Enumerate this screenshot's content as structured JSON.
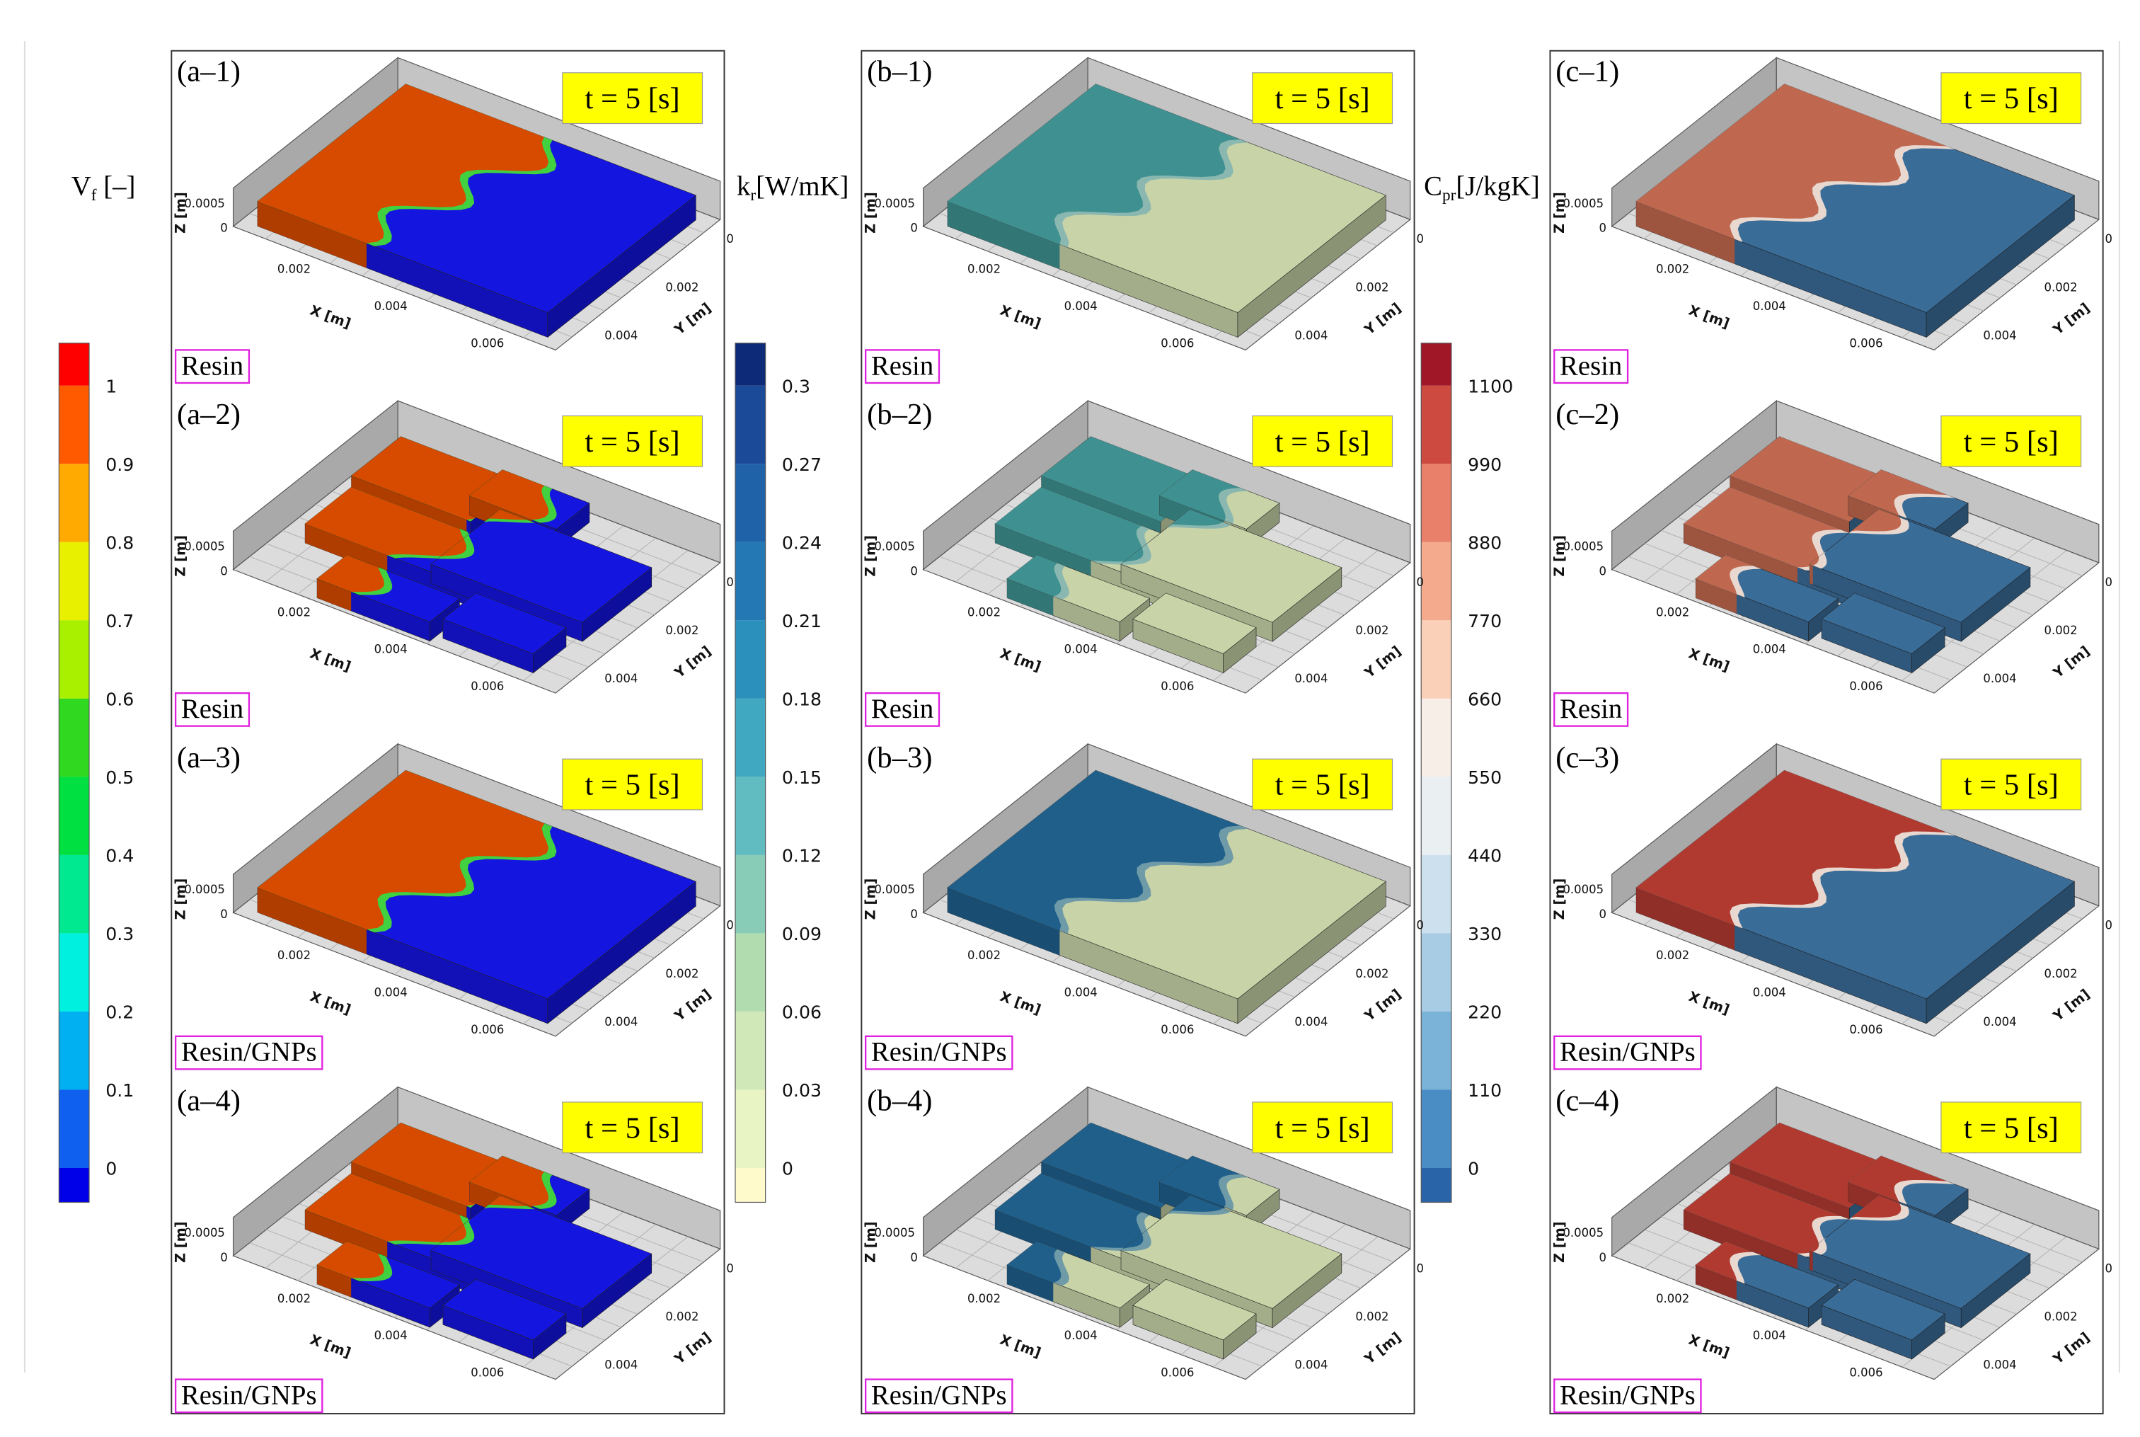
{
  "colorbars": [
    {
      "symbol": "V",
      "subscript": "f",
      "unit": " [–]",
      "ticks": [
        1,
        0.9,
        0.8,
        0.7,
        0.6,
        0.5,
        0.4,
        0.3,
        0.2,
        0.1,
        0
      ],
      "colors": [
        "#ff0000",
        "#ff5a00",
        "#ffaa00",
        "#e8f000",
        "#a8f000",
        "#30d820",
        "#00e040",
        "#00e890",
        "#00f0e0",
        "#00b0f0",
        "#1060f0",
        "#0000e8"
      ]
    },
    {
      "symbol": "k",
      "subscript": "r",
      "unit": "[W/mK]",
      "ticks": [
        0.3,
        0.27,
        0.24,
        0.21,
        0.18,
        0.15,
        0.12,
        0.09,
        0.06,
        0.03,
        0
      ],
      "colors": [
        "#0d2a78",
        "#1a4a98",
        "#1f62a8",
        "#2478b4",
        "#2c90bc",
        "#40a8c0",
        "#60bcc0",
        "#88ccb8",
        "#b0dcb0",
        "#d0e8b8",
        "#e8f4c4",
        "#fffacc"
      ]
    },
    {
      "symbol": "C",
      "subscript": "pr",
      "unit": "[J/kgK]",
      "ticks": [
        1100,
        990,
        880,
        770,
        660,
        550,
        440,
        330,
        220,
        110,
        0
      ],
      "colors": [
        "#a01828",
        "#cc4a40",
        "#e8806a",
        "#f4aa8c",
        "#fad0b8",
        "#f8eee8",
        "#eaeff2",
        "#cce0ee",
        "#a8cce4",
        "#7ab2d8",
        "#4a8cc4",
        "#2a64a8"
      ]
    }
  ],
  "axes": {
    "x_label": "X [m]",
    "y_label": "Y [m]",
    "z_label": "Z [m]",
    "x_ticks": [
      "0.002",
      "0.004",
      "0.006"
    ],
    "y_ticks": [
      "0",
      "0.002",
      "0.004"
    ],
    "z_ticks": [
      "0.0005",
      "0"
    ]
  },
  "columns": [
    {
      "panels": [
        {
          "label": "(a–1)",
          "time": "t = 5 [s]",
          "material": "Resin"
        },
        {
          "label": "(a–2)",
          "time": "t = 5 [s]",
          "material": "Resin"
        },
        {
          "label": "(a–3)",
          "time": "t = 5 [s]",
          "material": "Resin/GNPs"
        },
        {
          "label": "(a–4)",
          "time": "t = 5 [s]",
          "material": "Resin/GNPs"
        }
      ]
    },
    {
      "panels": [
        {
          "label": "(b–1)",
          "time": "t = 5 [s]",
          "material": "Resin"
        },
        {
          "label": "(b–2)",
          "time": "t = 5 [s]",
          "material": "Resin"
        },
        {
          "label": "(b–3)",
          "time": "t = 5 [s]",
          "material": "Resin/GNPs"
        },
        {
          "label": "(b–4)",
          "time": "t = 5 [s]",
          "material": "Resin/GNPs"
        }
      ]
    },
    {
      "panels": [
        {
          "label": "(c–1)",
          "time": "t = 5 [s]",
          "material": "Resin"
        },
        {
          "label": "(c–2)",
          "time": "t = 5 [s]",
          "material": "Resin"
        },
        {
          "label": "(c–3)",
          "time": "t = 5 [s]",
          "material": "Resin/GNPs"
        },
        {
          "label": "(c–4)",
          "time": "t = 5 [s]",
          "material": "Resin/GNPs"
        }
      ]
    }
  ]
}
